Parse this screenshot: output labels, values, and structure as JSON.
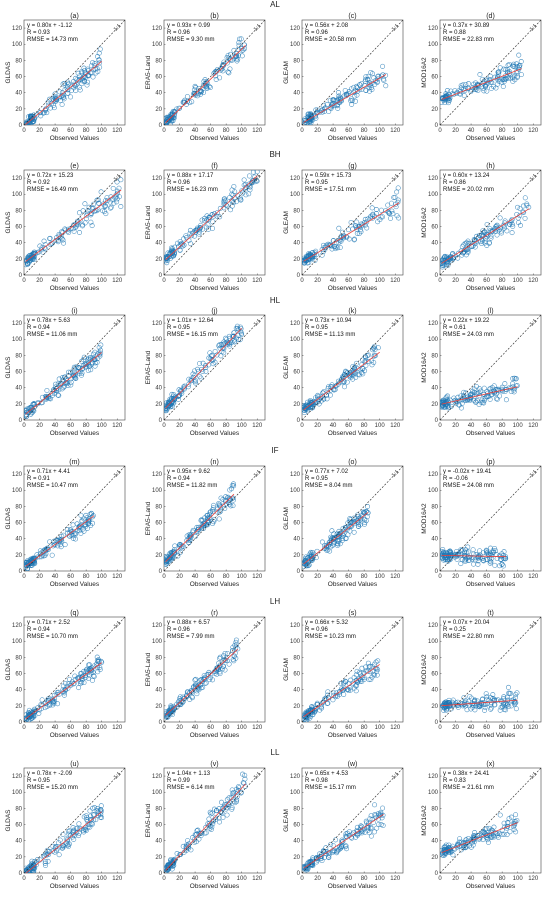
{
  "chart_data": {
    "type": "scatter",
    "x_label": "Observed Values",
    "axis_range": [
      0,
      130
    ],
    "ticks": [
      0,
      20,
      40,
      60,
      80,
      100,
      120
    ],
    "one_to_one_label": "1:1",
    "point_color": "#1f77b4",
    "fit_line_color": "#e8413b",
    "rows": [
      {
        "site": "AL",
        "panels": [
          {
            "label": "(a)",
            "product": "GLDAS",
            "equation": "y = 0.80x + -1.12",
            "r": "R = 0.93",
            "rmse": "RMSE = 14.73 mm",
            "slope": 0.8,
            "intercept": -1.12,
            "x_range": [
              2,
              100
            ]
          },
          {
            "label": "(b)",
            "product": "ERA5-Land",
            "equation": "y = 0.93x + 0.99",
            "r": "R = 0.96",
            "rmse": "RMSE = 9.30 mm",
            "slope": 0.93,
            "intercept": 0.99,
            "x_range": [
              2,
              105
            ]
          },
          {
            "label": "(c)",
            "product": "GLEAM",
            "equation": "y = 0.56x + 2.08",
            "r": "R = 0.96",
            "rmse": "RMSE = 20.58 mm",
            "slope": 0.56,
            "intercept": 2.08,
            "x_range": [
              2,
              108
            ]
          },
          {
            "label": "(d)",
            "product": "MOD16A2",
            "equation": "y = 0.37x + 30.89",
            "r": "R = 0.88",
            "rmse": "RMSE = 22.83 mm",
            "slope": 0.37,
            "intercept": 30.89,
            "x_range": [
              2,
              105
            ]
          }
        ]
      },
      {
        "site": "BH",
        "panels": [
          {
            "label": "(e)",
            "product": "GLDAS",
            "equation": "y = 0.72x + 15.23",
            "r": "R = 0.92",
            "rmse": "RMSE = 16.49 mm",
            "slope": 0.72,
            "intercept": 15.23,
            "x_range": [
              2,
              125
            ]
          },
          {
            "label": "(f)",
            "product": "ERA5-Land",
            "equation": "y = 0.88x + 17.17",
            "r": "R = 0.96",
            "rmse": "RMSE = 16.23 mm",
            "slope": 0.88,
            "intercept": 17.17,
            "x_range": [
              2,
              120
            ]
          },
          {
            "label": "(g)",
            "product": "GLEAM",
            "equation": "y = 0.59x + 15.73",
            "r": "R = 0.95",
            "rmse": "RMSE = 17.51 mm",
            "slope": 0.59,
            "intercept": 15.73,
            "x_range": [
              2,
              125
            ]
          },
          {
            "label": "(h)",
            "product": "MOD16A2",
            "equation": "y = 0.60x + 13.24",
            "r": "R = 0.86",
            "rmse": "RMSE = 20.02 mm",
            "slope": 0.6,
            "intercept": 13.24,
            "x_range": [
              2,
              115
            ]
          }
        ]
      },
      {
        "site": "HL",
        "panels": [
          {
            "label": "(i)",
            "product": "GLDAS",
            "equation": "y = 0.78x + 5.63",
            "r": "R = 0.94",
            "rmse": "RMSE = 11.06 mm",
            "slope": 0.78,
            "intercept": 5.63,
            "x_range": [
              2,
              100
            ]
          },
          {
            "label": "(j)",
            "product": "ERA5-Land",
            "equation": "y = 1.01x + 12.64",
            "r": "R = 0.95",
            "rmse": "RMSE = 16.15 mm",
            "slope": 1.01,
            "intercept": 12.64,
            "x_range": [
              2,
              100
            ]
          },
          {
            "label": "(k)",
            "product": "GLEAM",
            "equation": "y = 0.73x + 10.94",
            "r": "R = 0.95",
            "rmse": "RMSE = 11.13 mm",
            "slope": 0.73,
            "intercept": 10.94,
            "x_range": [
              2,
              100
            ]
          },
          {
            "label": "(l)",
            "product": "MOD16A2",
            "equation": "y = 0.22x + 19.22",
            "r": "R = 0.61",
            "rmse": "RMSE = 24.03 mm",
            "slope": 0.22,
            "intercept": 19.22,
            "x_range": [
              2,
              100
            ]
          }
        ]
      },
      {
        "site": "IF",
        "panels": [
          {
            "label": "(m)",
            "product": "GLDAS",
            "equation": "y = 0.71x + 4.41",
            "r": "R = 0.91",
            "rmse": "RMSE = 10.47 mm",
            "slope": 0.71,
            "intercept": 4.41,
            "x_range": [
              2,
              90
            ]
          },
          {
            "label": "(n)",
            "product": "ERA5-Land",
            "equation": "y = 0.95x + 9.62",
            "r": "R = 0.94",
            "rmse": "RMSE = 11.82 mm",
            "slope": 0.95,
            "intercept": 9.62,
            "x_range": [
              2,
              90
            ]
          },
          {
            "label": "(o)",
            "product": "GLEAM",
            "equation": "y = 0.77x + 7.02",
            "r": "R = 0.95",
            "rmse": "RMSE = 8.04 mm",
            "slope": 0.77,
            "intercept": 7.02,
            "x_range": [
              2,
              85
            ]
          },
          {
            "label": "(p)",
            "product": "MOD16A2",
            "equation": "y = -0.02x + 19.41",
            "r": "R = -0.06",
            "rmse": "RMSE = 24.08 mm",
            "slope": -0.02,
            "intercept": 19.41,
            "x_range": [
              2,
              85
            ]
          }
        ]
      },
      {
        "site": "LH",
        "panels": [
          {
            "label": "(q)",
            "product": "GLDAS",
            "equation": "y = 0.71x + 2.52",
            "r": "R = 0.94",
            "rmse": "RMSE = 10.70 mm",
            "slope": 0.71,
            "intercept": 2.52,
            "x_range": [
              2,
              100
            ]
          },
          {
            "label": "(r)",
            "product": "ERA5-Land",
            "equation": "y = 0.88x + 6.57",
            "r": "R = 0.96",
            "rmse": "RMSE = 7.99 mm",
            "slope": 0.88,
            "intercept": 6.57,
            "x_range": [
              2,
              95
            ]
          },
          {
            "label": "(s)",
            "product": "GLEAM",
            "equation": "y = 0.66x + 5.32",
            "r": "R = 0.96",
            "rmse": "RMSE = 10.23 mm",
            "slope": 0.66,
            "intercept": 5.32,
            "x_range": [
              2,
              100
            ]
          },
          {
            "label": "(t)",
            "product": "MOD16A2",
            "equation": "y = 0.07x + 20.04",
            "r": "R = 0.25",
            "rmse": "RMSE = 22.80 mm",
            "slope": 0.07,
            "intercept": 20.04,
            "x_range": [
              2,
              100
            ]
          }
        ]
      },
      {
        "site": "LL",
        "panels": [
          {
            "label": "(u)",
            "product": "GLDAS",
            "equation": "y = 0.78x + -2.09",
            "r": "R = 0.95",
            "rmse": "RMSE = 15.20 mm",
            "slope": 0.78,
            "intercept": -2.09,
            "x_range": [
              2,
              100
            ]
          },
          {
            "label": "(v)",
            "product": "ERA5-Land",
            "equation": "y = 1.04x + 1.13",
            "r": "R = 0.99",
            "rmse": "RMSE = 6.14 mm",
            "slope": 1.04,
            "intercept": 1.13,
            "x_range": [
              2,
              105
            ]
          },
          {
            "label": "(w)",
            "product": "GLEAM",
            "equation": "y = 0.65x + 4.53",
            "r": "R = 0.98",
            "rmse": "RMSE = 15.17 mm",
            "slope": 0.65,
            "intercept": 4.53,
            "x_range": [
              2,
              105
            ]
          },
          {
            "label": "(x)",
            "product": "MOD16A2",
            "equation": "y = 0.38x + 24.41",
            "r": "R = 0.83",
            "rmse": "RMSE = 21.61 mm",
            "slope": 0.38,
            "intercept": 24.41,
            "x_range": [
              2,
              100
            ]
          }
        ]
      }
    ]
  }
}
